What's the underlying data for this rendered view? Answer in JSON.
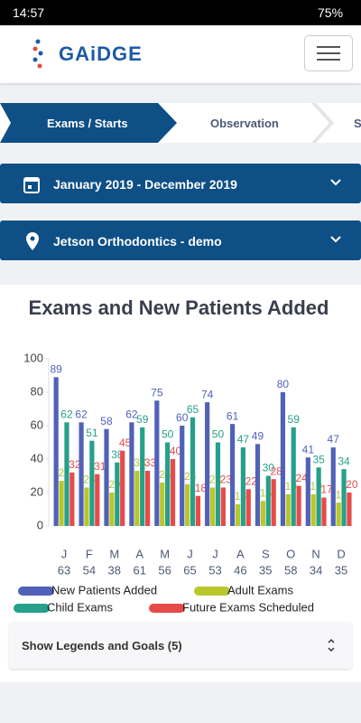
{
  "status_bar": {
    "time": "14:57",
    "battery": "75%"
  },
  "header": {
    "logo": "GAiDGE"
  },
  "tabs": [
    "Exams / Starts",
    "Observation",
    "S"
  ],
  "filters": {
    "date_range": "January 2019 - December 2019",
    "location": "Jetson Orthodontics - demo"
  },
  "chart_data": {
    "type": "bar",
    "title": "Exams and New Patients Added",
    "categories": [
      "J",
      "F",
      "M",
      "A",
      "M",
      "J",
      "J",
      "A",
      "S",
      "O",
      "N",
      "D"
    ],
    "category_counts": [
      63,
      54,
      38,
      61,
      56,
      65,
      53,
      46,
      35,
      58,
      34,
      35
    ],
    "series": [
      {
        "name": "New Patients Added",
        "color": "#5062b8",
        "values": [
          89,
          62,
          58,
          62,
          75,
          60,
          74,
          61,
          49,
          80,
          41,
          47
        ]
      },
      {
        "name": "Child Exams",
        "color": "#26a08a",
        "values": [
          62,
          51,
          38,
          59,
          50,
          65,
          50,
          47,
          30,
          59,
          35,
          34
        ]
      },
      {
        "name": "Adult Exams",
        "color": "#b9c62c",
        "values": [
          27,
          23,
          20,
          33,
          26,
          25,
          23,
          13,
          15,
          19,
          19,
          14
        ]
      },
      {
        "name": "Future Exams Scheduled",
        "color": "#e84a4a",
        "values": [
          32,
          31,
          45,
          33,
          40,
          18,
          23,
          22,
          28,
          24,
          17,
          20
        ]
      }
    ],
    "ylim": [
      0,
      100
    ],
    "yticks": [
      0,
      20,
      40,
      60,
      80,
      100
    ],
    "grid": false
  },
  "accordion": {
    "label": "Show Legends and Goals (5)"
  }
}
